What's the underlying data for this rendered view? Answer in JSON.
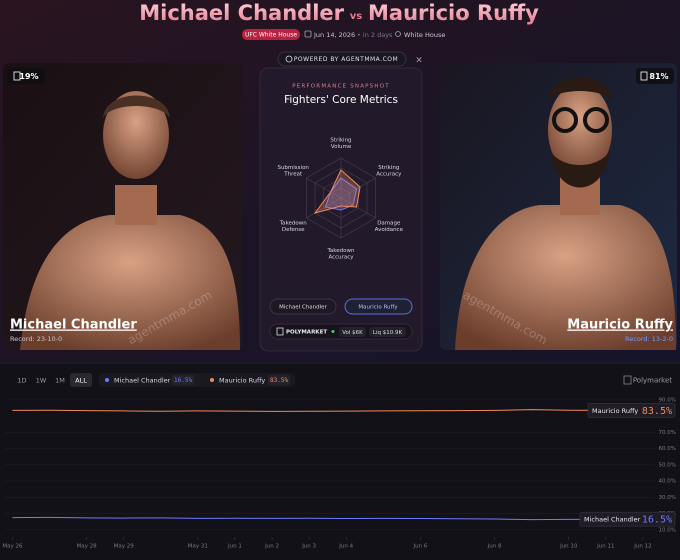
{
  "header": {
    "fighter_a": "Michael Chandler",
    "vs": "vs",
    "fighter_b": "Mauricio Ruffy",
    "event": "UFC White House",
    "date": "Jun 14, 2026",
    "countdown": "• in 2 days",
    "venue": "White House"
  },
  "powered_by": "POWERED BY AGENTMMA.COM",
  "close": "×",
  "watermark": "agentmma.com",
  "fighters": [
    {
      "name": "Michael Chandler",
      "record": "Record: 23-10-0",
      "win_chance": "19%"
    },
    {
      "name": "Mauricio Ruffy",
      "record": "Record: 13-2-0",
      "win_chance": "81%"
    }
  ],
  "snapshot": {
    "kicker": "PERFORMANCE SNAPSHOT",
    "title": "Fighters' Core Metrics",
    "buttons": [
      "Michael Chandler",
      "Mauricio Ruffy"
    ]
  },
  "market": {
    "name": "POLYMARKET",
    "volume": "Vol $6K",
    "liquidity": "Liq $10.9K"
  },
  "toolbar": {
    "ranges": [
      "1D",
      "1W",
      "1M",
      "ALL"
    ],
    "source": "Polymarket"
  },
  "chart_data": [
    {
      "type": "radar",
      "categories": [
        "Striking\nVolume",
        "Striking\nAccuracy",
        "Damage\nAvoidance",
        "Takedown\nAccuracy",
        "Takedown\nDefense",
        "Submission\nThreat"
      ],
      "rlim": [
        0,
        100
      ],
      "series": [
        {
          "name": "Michael Chandler",
          "color": "#6b7cff",
          "values": [
            50,
            45,
            35,
            30,
            45,
            30
          ]
        },
        {
          "name": "Mauricio Ruffy",
          "color": "#f08a5d",
          "values": [
            70,
            55,
            45,
            20,
            75,
            30
          ]
        }
      ]
    },
    {
      "type": "line",
      "x": [
        0,
        1,
        2,
        3,
        4,
        5,
        6,
        7,
        8,
        9,
        10,
        11,
        12,
        13,
        14,
        15,
        16
      ],
      "xlim": [
        -0.2,
        18
      ],
      "xticks": [
        {
          "value": 0,
          "label": "May 26"
        },
        {
          "value": 2,
          "label": "May 28"
        },
        {
          "value": 3,
          "label": "May 29"
        },
        {
          "value": 5,
          "label": "May 31"
        },
        {
          "value": 6,
          "label": "Jun 1"
        },
        {
          "value": 7,
          "label": "Jun 2"
        },
        {
          "value": 8,
          "label": "Jun 3"
        },
        {
          "value": 9,
          "label": "Jun 4"
        },
        {
          "value": 11,
          "label": "Jun 6"
        },
        {
          "value": 13,
          "label": "Jun 8"
        },
        {
          "value": 15,
          "label": "Jun 10"
        },
        {
          "value": 16,
          "label": "Jun 11"
        },
        {
          "value": 17,
          "label": "Jun 12"
        }
      ],
      "ylim": [
        8,
        93
      ],
      "yticks": [
        {
          "value": 90,
          "label": "90.0%"
        },
        {
          "value": 70,
          "label": "70.0%"
        },
        {
          "value": 60,
          "label": "60.0%"
        },
        {
          "value": 50,
          "label": "50.0%"
        },
        {
          "value": 40,
          "label": "40.0%"
        },
        {
          "value": 30,
          "label": "30.0%"
        },
        {
          "value": 20,
          "label": "20.0%"
        },
        {
          "value": 10,
          "label": "10.0%"
        }
      ],
      "series": [
        {
          "name": "Michael Chandler",
          "color": "#6b7cff",
          "values": [
            17.5,
            17.6,
            17.3,
            17.2,
            17.3,
            17.0,
            17.1,
            17.0,
            17.1,
            16.9,
            17.0,
            16.9,
            16.8,
            16.6,
            16.2,
            16.4,
            16.5
          ],
          "value_labels": [
            null,
            null,
            null,
            null,
            null,
            null,
            null,
            null,
            null,
            null,
            null,
            null,
            null,
            null,
            null,
            null,
            "16.5%"
          ]
        },
        {
          "name": "Mauricio Ruffy",
          "color": "#f08a5d",
          "values": [
            83.5,
            83.6,
            83.4,
            83.2,
            83.0,
            83.2,
            83.1,
            82.9,
            83.0,
            83.1,
            83.2,
            83.3,
            83.4,
            83.5,
            84.0,
            83.6,
            83.5
          ],
          "value_labels": [
            null,
            null,
            null,
            null,
            null,
            null,
            null,
            null,
            null,
            null,
            null,
            null,
            null,
            null,
            null,
            null,
            "83.5%"
          ]
        }
      ]
    }
  ]
}
